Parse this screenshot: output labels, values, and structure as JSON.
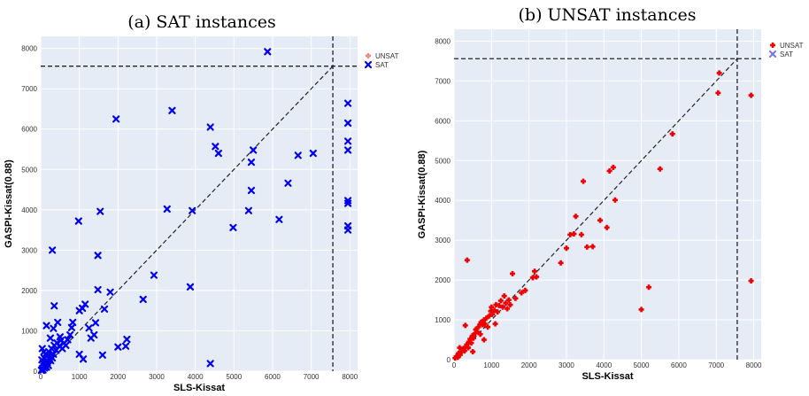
{
  "chart_data": [
    {
      "type": "scatter",
      "caption": "(a) SAT instances",
      "title": "",
      "xlabel": "SLS-Kissat",
      "ylabel": "GASPI-Kissat(0.88)",
      "xlim": [
        0,
        8200
      ],
      "ylim": [
        0,
        8300
      ],
      "xticks": [
        0,
        1000,
        2000,
        3000,
        4000,
        5000,
        6000,
        7000,
        8000
      ],
      "yticks": [
        0,
        1000,
        2000,
        3000,
        4000,
        5000,
        6000,
        7000,
        8000
      ],
      "grid": true,
      "legend_position": "top-right",
      "timeout_line": 7560,
      "diagonal": true,
      "series": [
        {
          "name": "UNSAT",
          "marker": "plus",
          "color": "#f08a8a",
          "points": []
        },
        {
          "name": "SAT",
          "marker": "x",
          "color": "#0000ee",
          "points": [
            [
              20,
              20
            ],
            [
              40,
              60
            ],
            [
              60,
              30
            ],
            [
              80,
              120
            ],
            [
              100,
              80
            ],
            [
              120,
              150
            ],
            [
              150,
              100
            ],
            [
              60,
              200
            ],
            [
              30,
              280
            ],
            [
              90,
              330
            ],
            [
              130,
              250
            ],
            [
              170,
              210
            ],
            [
              200,
              140
            ],
            [
              230,
              310
            ],
            [
              260,
              260
            ],
            [
              120,
              420
            ],
            [
              40,
              560
            ],
            [
              80,
              480
            ],
            [
              180,
              380
            ],
            [
              210,
              480
            ],
            [
              300,
              330
            ],
            [
              330,
              420
            ],
            [
              280,
              560
            ],
            [
              350,
              640
            ],
            [
              400,
              520
            ],
            [
              420,
              700
            ],
            [
              480,
              620
            ],
            [
              520,
              760
            ],
            [
              560,
              560
            ],
            [
              600,
              700
            ],
            [
              250,
              820
            ],
            [
              150,
              1130
            ],
            [
              330,
              1060
            ],
            [
              440,
              1210
            ],
            [
              500,
              850
            ],
            [
              650,
              640
            ],
            [
              700,
              780
            ],
            [
              760,
              900
            ],
            [
              800,
              1080
            ],
            [
              830,
              1210
            ],
            [
              350,
              1620
            ],
            [
              300,
              3000
            ],
            [
              980,
              3720
            ],
            [
              1000,
              1500
            ],
            [
              1080,
              1560
            ],
            [
              1150,
              1660
            ],
            [
              1250,
              1070
            ],
            [
              1300,
              820
            ],
            [
              1380,
              900
            ],
            [
              1420,
              1200
            ],
            [
              1480,
              2020
            ],
            [
              1480,
              2870
            ],
            [
              1540,
              3960
            ],
            [
              1650,
              1540
            ],
            [
              1800,
              1960
            ],
            [
              1950,
              6250
            ],
            [
              2000,
              600
            ],
            [
              2200,
              620
            ],
            [
              2230,
              790
            ],
            [
              2650,
              1780
            ],
            [
              2930,
              2380
            ],
            [
              3270,
              4020
            ],
            [
              3400,
              6460
            ],
            [
              3870,
              2090
            ],
            [
              3920,
              3980
            ],
            [
              4390,
              6050
            ],
            [
              4390,
              190
            ],
            [
              4520,
              5570
            ],
            [
              4600,
              5400
            ],
            [
              4980,
              3560
            ],
            [
              5380,
              3980
            ],
            [
              5450,
              4480
            ],
            [
              5450,
              5180
            ],
            [
              5500,
              5480
            ],
            [
              5870,
              7920
            ],
            [
              6170,
              3760
            ],
            [
              6400,
              4660
            ],
            [
              6660,
              5350
            ],
            [
              7050,
              5400
            ],
            [
              7950,
              6640
            ],
            [
              7950,
              6150
            ],
            [
              7950,
              5700
            ],
            [
              7950,
              5480
            ],
            [
              7950,
              4230
            ],
            [
              7950,
              4160
            ],
            [
              7950,
              3600
            ],
            [
              7950,
              3500
            ],
            [
              1000,
              420
            ],
            [
              1100,
              300
            ],
            [
              1600,
              400
            ]
          ]
        }
      ]
    },
    {
      "type": "scatter",
      "caption": "(b) UNSAT instances",
      "title": "",
      "xlabel": "SLS-Kissat",
      "ylabel": "GASPI-Kissat(0.88)",
      "xlim": [
        0,
        8200
      ],
      "ylim": [
        0,
        8300
      ],
      "xticks": [
        0,
        1000,
        2000,
        3000,
        4000,
        5000,
        6000,
        7000,
        8000
      ],
      "yticks": [
        0,
        1000,
        2000,
        3000,
        4000,
        5000,
        6000,
        7000,
        8000
      ],
      "grid": true,
      "legend_position": "top-right",
      "timeout_line": 7560,
      "diagonal": true,
      "series": [
        {
          "name": "UNSAT",
          "marker": "plus",
          "color": "#ee0000",
          "points": [
            [
              30,
              40
            ],
            [
              60,
              80
            ],
            [
              100,
              60
            ],
            [
              120,
              160
            ],
            [
              160,
              120
            ],
            [
              200,
              200
            ],
            [
              240,
              260
            ],
            [
              280,
              220
            ],
            [
              300,
              320
            ],
            [
              340,
              380
            ],
            [
              380,
              300
            ],
            [
              400,
              450
            ],
            [
              430,
              520
            ],
            [
              460,
              420
            ],
            [
              490,
              600
            ],
            [
              520,
              540
            ],
            [
              560,
              660
            ],
            [
              580,
              760
            ],
            [
              620,
              700
            ],
            [
              650,
              820
            ],
            [
              690,
              880
            ],
            [
              700,
              640
            ],
            [
              720,
              940
            ],
            [
              760,
              880
            ],
            [
              800,
              1000
            ],
            [
              820,
              900
            ],
            [
              860,
              1040
            ],
            [
              900,
              820
            ],
            [
              940,
              1100
            ],
            [
              980,
              1220
            ],
            [
              1000,
              1320
            ],
            [
              1020,
              1140
            ],
            [
              1080,
              1240
            ],
            [
              1120,
              1380
            ],
            [
              1160,
              1200
            ],
            [
              1200,
              1360
            ],
            [
              1250,
              1480
            ],
            [
              1300,
              1320
            ],
            [
              1340,
              1600
            ],
            [
              1380,
              1420
            ],
            [
              1420,
              1280
            ],
            [
              1460,
              1500
            ],
            [
              1500,
              1380
            ],
            [
              1560,
              2160
            ],
            [
              1640,
              1540
            ],
            [
              1800,
              1680
            ],
            [
              1900,
              1740
            ],
            [
              2100,
              2060
            ],
            [
              2150,
              2220
            ],
            [
              2200,
              2080
            ],
            [
              350,
              2500
            ],
            [
              300,
              860
            ],
            [
              2850,
              2430
            ],
            [
              3000,
              2800
            ],
            [
              3100,
              3140
            ],
            [
              3200,
              3160
            ],
            [
              3250,
              3600
            ],
            [
              3400,
              3140
            ],
            [
              3450,
              4480
            ],
            [
              3550,
              2830
            ],
            [
              3700,
              2840
            ],
            [
              3900,
              3500
            ],
            [
              4080,
              3320
            ],
            [
              4150,
              4740
            ],
            [
              4250,
              4830
            ],
            [
              4300,
              4010
            ],
            [
              5000,
              1260
            ],
            [
              5200,
              1820
            ],
            [
              5500,
              4790
            ],
            [
              5830,
              5670
            ],
            [
              7050,
              6700
            ],
            [
              7080,
              7200
            ],
            [
              7930,
              6640
            ],
            [
              7930,
              1980
            ],
            [
              150,
              300
            ],
            [
              500,
              200
            ],
            [
              800,
              500
            ],
            [
              1100,
              900
            ]
          ]
        },
        {
          "name": "SAT",
          "marker": "x",
          "color": "#7a7aee",
          "points": []
        }
      ]
    }
  ]
}
